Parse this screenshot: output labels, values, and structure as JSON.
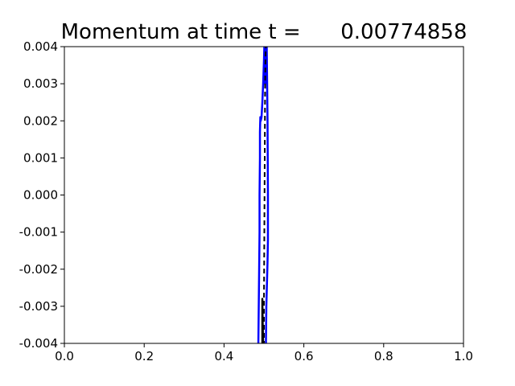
{
  "chart_data": {
    "type": "line",
    "title": "Momentum at time t =      0.00774858",
    "xlabel": "",
    "ylabel": "",
    "xlim": [
      0.0,
      1.0
    ],
    "ylim": [
      -0.004,
      0.004
    ],
    "x_ticks": [
      "0.0",
      "0.2",
      "0.4",
      "0.6",
      "0.8",
      "1.0"
    ],
    "y_ticks": [
      "0.004",
      "0.003",
      "0.002",
      "0.001",
      "0.000",
      "-0.001",
      "-0.002",
      "-0.003",
      "-0.004"
    ],
    "grid": false,
    "legend": "none",
    "series": [
      {
        "style": "solid",
        "color": "#0000ff",
        "points": [
          [
            0.485,
            -0.0045
          ],
          [
            0.486,
            -0.004
          ],
          [
            0.487,
            -0.003
          ],
          [
            0.488,
            -0.002
          ],
          [
            0.489,
            -0.001
          ],
          [
            0.489,
            0.0
          ],
          [
            0.49,
            0.001
          ],
          [
            0.49,
            0.0017
          ],
          [
            0.491,
            0.0021
          ],
          [
            0.492,
            0.002
          ],
          [
            0.494,
            0.0021
          ],
          [
            0.496,
            0.0025
          ],
          [
            0.498,
            0.003
          ],
          [
            0.5,
            0.0036
          ],
          [
            0.501,
            0.004
          ],
          [
            0.502,
            0.0045
          ],
          [
            0.503,
            0.004
          ],
          [
            0.503,
            0.003
          ],
          [
            0.504,
            0.0036
          ],
          [
            0.505,
            0.0045
          ],
          [
            0.507,
            0.004
          ],
          [
            0.509,
            0.002
          ],
          [
            0.51,
            0.0
          ],
          [
            0.51,
            -0.0012
          ],
          [
            0.509,
            -0.0018
          ],
          [
            0.508,
            -0.0022
          ],
          [
            0.506,
            -0.003
          ],
          [
            0.505,
            -0.004
          ],
          [
            0.504,
            -0.0045
          ]
        ]
      },
      {
        "style": "solid",
        "color": "#000000",
        "points": [
          [
            0.496,
            -0.0045
          ],
          [
            0.496,
            -0.0028
          ],
          [
            0.497,
            -0.0035
          ],
          [
            0.498,
            -0.004
          ],
          [
            0.499,
            -0.0045
          ]
        ]
      },
      {
        "style": "dashed",
        "color": "#000000",
        "points": [
          [
            0.5,
            -0.0045
          ],
          [
            0.5,
            -0.003
          ],
          [
            0.501,
            -0.001
          ],
          [
            0.502,
            0.001
          ],
          [
            0.503,
            0.003
          ],
          [
            0.504,
            0.0038
          ],
          [
            0.505,
            0.004
          ],
          [
            0.506,
            0.0045
          ]
        ]
      }
    ]
  }
}
